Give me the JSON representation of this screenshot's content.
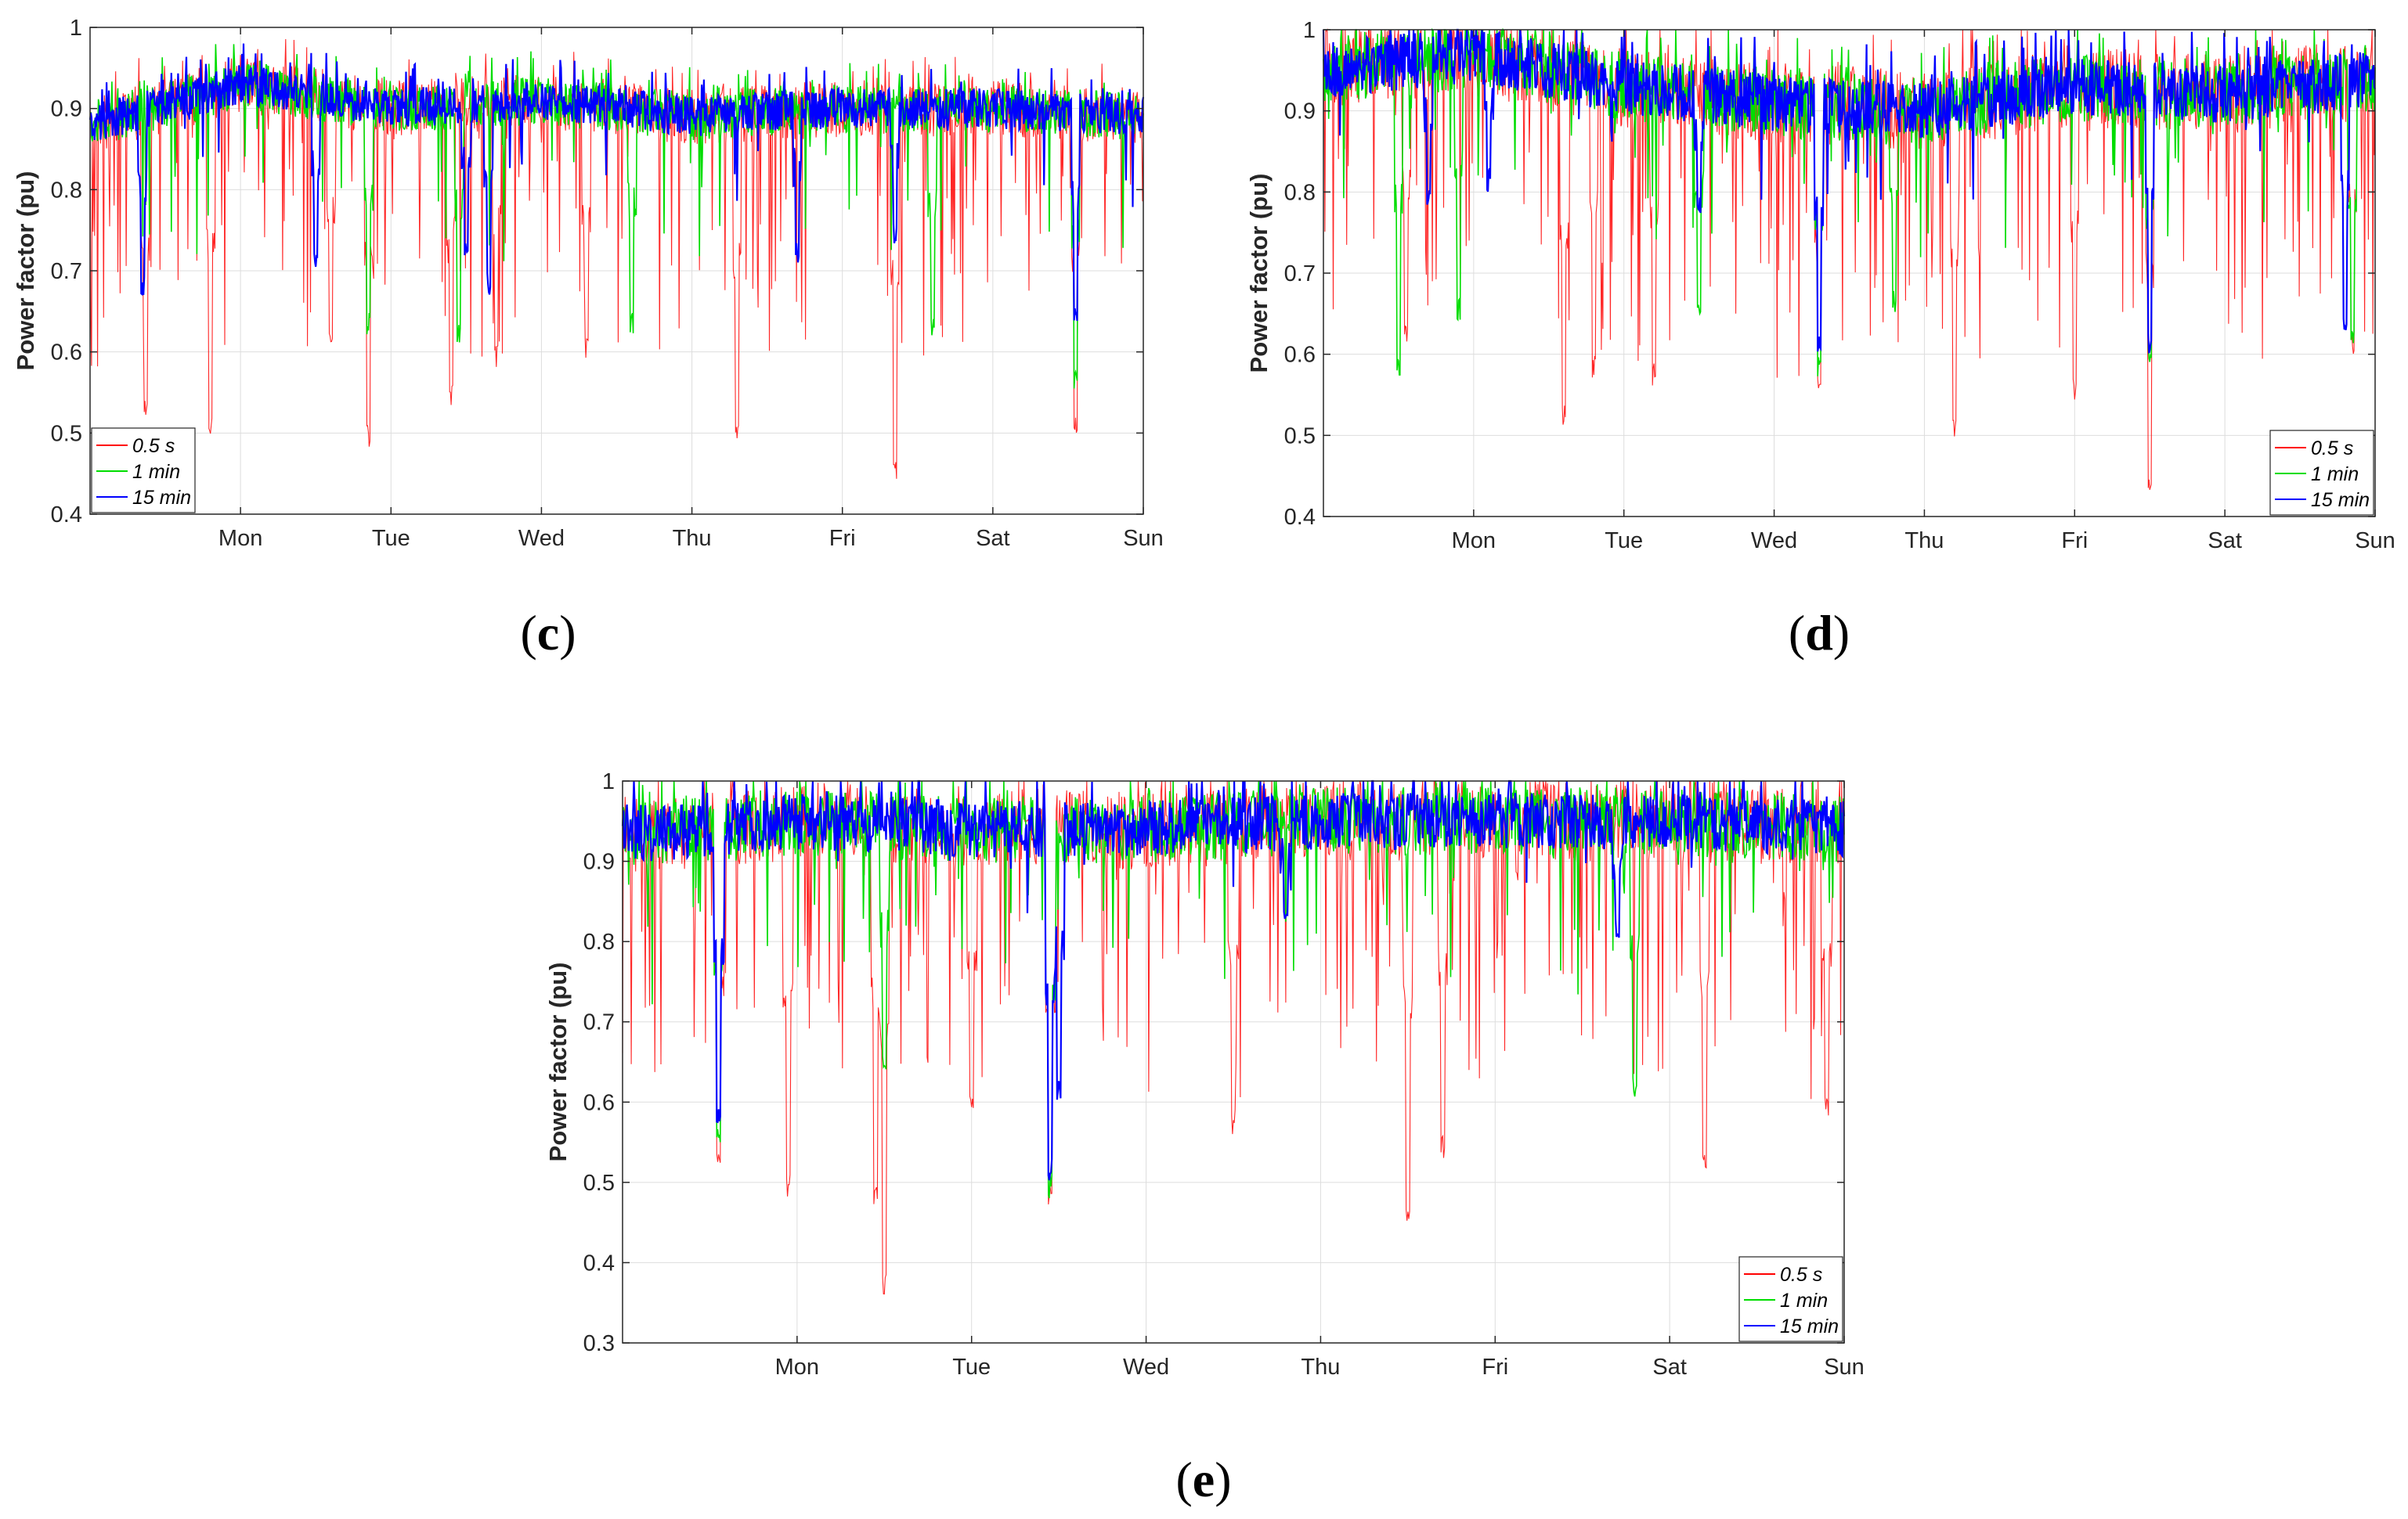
{
  "colors": {
    "s05": "#ff0000",
    "m1": "#00dd00",
    "m15": "#0000ff",
    "grid": "#dddddd",
    "axis": "#262626"
  },
  "chart_data": [
    {
      "id": "c",
      "type": "line",
      "caption": {
        "open": "(",
        "letter": "c",
        "close": ")"
      },
      "ylabel": "Power factor (pu)",
      "xlabel": "",
      "ylim": [
        0.4,
        1.0
      ],
      "yticks": [
        0.4,
        0.5,
        0.6,
        0.7,
        0.8,
        0.9,
        1.0
      ],
      "ytick_labels": [
        "0.4",
        "0.5",
        "0.6",
        "0.7",
        "0.8",
        "0.9",
        "1"
      ],
      "xlim": [
        0,
        7
      ],
      "xticks": [
        1,
        2,
        3,
        4,
        5,
        6,
        7
      ],
      "xtick_labels": [
        "Mon",
        "Tue",
        "Wed",
        "Thu",
        "Fri",
        "Sat",
        "Sun"
      ],
      "legend_position": "bottom-left",
      "series": [
        {
          "name": "0.5 s",
          "color": "#ff0000"
        },
        {
          "name": "1 min",
          "color": "#00dd00"
        },
        {
          "name": "15 min",
          "color": "#0000ff"
        }
      ],
      "profile": {
        "baseline": [
          [
            0,
            0.88
          ],
          [
            0.4,
            0.9
          ],
          [
            1.0,
            0.93
          ],
          [
            2.0,
            0.9
          ],
          [
            3.0,
            0.91
          ],
          [
            4.0,
            0.89
          ],
          [
            5.0,
            0.9
          ],
          [
            6.0,
            0.9
          ],
          [
            7.0,
            0.89
          ]
        ],
        "band": 0.035,
        "dips_15min": [
          [
            0.35,
            0.67
          ],
          [
            1.5,
            0.7
          ],
          [
            2.5,
            0.71
          ],
          [
            2.65,
            0.67
          ],
          [
            4.7,
            0.71
          ],
          [
            5.35,
            0.73
          ],
          [
            6.55,
            0.63
          ]
        ],
        "dips_1min": [
          [
            1.85,
            0.62
          ],
          [
            2.45,
            0.61
          ],
          [
            3.6,
            0.62
          ],
          [
            5.6,
            0.62
          ],
          [
            6.55,
            0.55
          ]
        ],
        "dips_05s": [
          [
            0.37,
            0.52
          ],
          [
            0.8,
            0.49
          ],
          [
            1.85,
            0.48
          ],
          [
            2.4,
            0.53
          ],
          [
            2.7,
            0.58
          ],
          [
            4.3,
            0.48
          ],
          [
            5.35,
            0.44
          ],
          [
            6.55,
            0.5
          ],
          [
            1.6,
            0.6
          ],
          [
            3.3,
            0.59
          ]
        ]
      }
    },
    {
      "id": "d",
      "type": "line",
      "caption": {
        "open": "(",
        "letter": "d",
        "close": ")"
      },
      "ylabel": "Power factor (pu)",
      "xlabel": "",
      "ylim": [
        0.4,
        1.0
      ],
      "yticks": [
        0.4,
        0.5,
        0.6,
        0.7,
        0.8,
        0.9,
        1.0
      ],
      "ytick_labels": [
        "0.4",
        "0.5",
        "0.6",
        "0.7",
        "0.8",
        "0.9",
        "1"
      ],
      "xlim": [
        0,
        7
      ],
      "xticks": [
        1,
        2,
        3,
        4,
        5,
        6,
        7
      ],
      "xtick_labels": [
        "Mon",
        "Tue",
        "Wed",
        "Thu",
        "Fri",
        "Sat",
        "Sun"
      ],
      "legend_position": "bottom-right",
      "series": [
        {
          "name": "0.5 s",
          "color": "#ff0000"
        },
        {
          "name": "1 min",
          "color": "#00dd00"
        },
        {
          "name": "15 min",
          "color": "#0000ff"
        }
      ],
      "profile": {
        "baseline": [
          [
            0,
            0.95
          ],
          [
            1.0,
            0.97
          ],
          [
            2.0,
            0.93
          ],
          [
            3.0,
            0.91
          ],
          [
            4.0,
            0.9
          ],
          [
            5.0,
            0.93
          ],
          [
            6.0,
            0.92
          ],
          [
            7.0,
            0.94
          ]
        ],
        "band": 0.05,
        "dips_15min": [
          [
            0.7,
            0.78
          ],
          [
            2.5,
            0.77
          ],
          [
            3.3,
            0.6
          ],
          [
            5.5,
            0.6
          ],
          [
            6.8,
            0.62
          ],
          [
            1.1,
            0.8
          ]
        ],
        "dips_1min": [
          [
            0.5,
            0.57
          ],
          [
            0.9,
            0.64
          ],
          [
            2.5,
            0.64
          ],
          [
            3.3,
            0.57
          ],
          [
            5.5,
            0.58
          ],
          [
            6.85,
            0.6
          ],
          [
            3.8,
            0.65
          ]
        ],
        "dips_05s": [
          [
            0.55,
            0.61
          ],
          [
            1.6,
            0.51
          ],
          [
            2.2,
            0.56
          ],
          [
            3.3,
            0.54
          ],
          [
            4.2,
            0.49
          ],
          [
            5.5,
            0.43
          ],
          [
            5.0,
            0.54
          ],
          [
            6.85,
            0.6
          ],
          [
            1.8,
            0.57
          ]
        ]
      }
    },
    {
      "id": "e",
      "type": "line",
      "caption": {
        "open": "(",
        "letter": "e",
        "close": ")"
      },
      "ylabel": "Power factor (pu)",
      "xlabel": "",
      "ylim": [
        0.3,
        1.0
      ],
      "yticks": [
        0.3,
        0.4,
        0.5,
        0.6,
        0.7,
        0.8,
        0.9,
        1.0
      ],
      "ytick_labels": [
        "0.3",
        "0.4",
        "0.5",
        "0.6",
        "0.7",
        "0.8",
        "0.9",
        "1"
      ],
      "xlim": [
        0,
        7
      ],
      "xticks": [
        1,
        2,
        3,
        4,
        5,
        6,
        7
      ],
      "xtick_labels": [
        "Mon",
        "Tue",
        "Wed",
        "Thu",
        "Fri",
        "Sat",
        "Sun"
      ],
      "legend_position": "bottom-right",
      "series": [
        {
          "name": "0.5 s",
          "color": "#ff0000"
        },
        {
          "name": "1 min",
          "color": "#00dd00"
        },
        {
          "name": "15 min",
          "color": "#0000ff"
        }
      ],
      "profile": {
        "baseline": [
          [
            0,
            0.93
          ],
          [
            1.0,
            0.95
          ],
          [
            2.0,
            0.94
          ],
          [
            3.0,
            0.94
          ],
          [
            4.0,
            0.95
          ],
          [
            5.0,
            0.95
          ],
          [
            6.0,
            0.95
          ],
          [
            7.0,
            0.94
          ]
        ],
        "band": 0.05,
        "dips_15min": [
          [
            0.55,
            0.57
          ],
          [
            2.45,
            0.5
          ],
          [
            2.5,
            0.6
          ],
          [
            5.7,
            0.8
          ],
          [
            3.8,
            0.82
          ]
        ],
        "dips_1min": [
          [
            0.55,
            0.55
          ],
          [
            2.45,
            0.48
          ],
          [
            5.8,
            0.6
          ],
          [
            1.5,
            0.64
          ]
        ],
        "dips_05s": [
          [
            0.55,
            0.52
          ],
          [
            0.95,
            0.48
          ],
          [
            1.5,
            0.36
          ],
          [
            1.45,
            0.47
          ],
          [
            2.45,
            0.47
          ],
          [
            3.5,
            0.56
          ],
          [
            4.5,
            0.45
          ],
          [
            4.7,
            0.53
          ],
          [
            6.2,
            0.51
          ],
          [
            6.9,
            0.58
          ],
          [
            2.0,
            0.58
          ]
        ]
      }
    }
  ]
}
